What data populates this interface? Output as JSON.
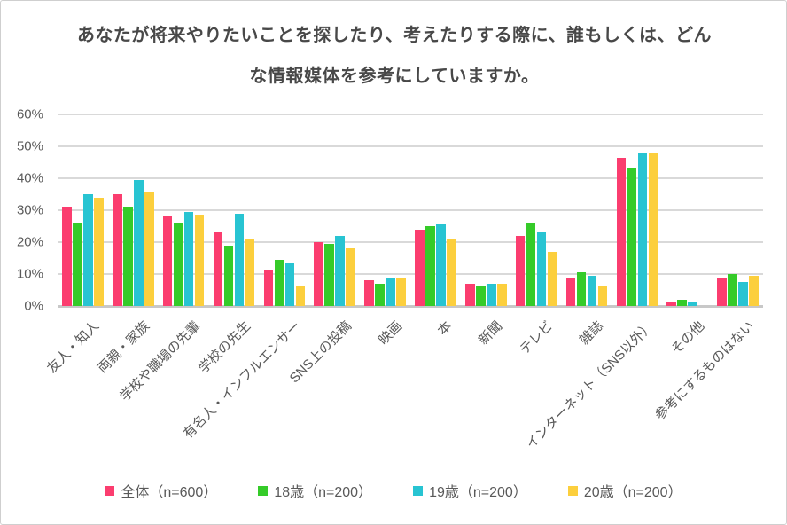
{
  "title": "あなたが将来やりたいことを探したり、考えたりする際に、誰もしくは、どんな情報媒体を参考にしていますか。",
  "chart_data": {
    "type": "bar",
    "title": "あなたが将来やりたいことを探したり、考えたりする際に、誰もしくは、どんな情報媒体を参考にしていますか。",
    "categories": [
      "友人・知人",
      "両親・家族",
      "学校や職場の先輩",
      "学校の先生",
      "有名人・インフルエンサー",
      "SNS上の投稿",
      "映画",
      "本",
      "新聞",
      "テレビ",
      "雑誌",
      "インターネット（SNS以外）",
      "その他",
      "参考にするものはない"
    ],
    "series": [
      {
        "name": "全体（n=600）",
        "color": "#FB3D6F",
        "values": [
          31,
          35,
          28,
          23,
          11.5,
          20,
          8,
          24,
          7,
          22,
          9,
          46.5,
          1.2,
          9
        ]
      },
      {
        "name": "18歳（n=200）",
        "color": "#35CB29",
        "values": [
          26,
          31,
          26,
          19,
          14.5,
          19.5,
          7,
          25,
          6.5,
          26,
          10.5,
          43,
          2,
          10
        ]
      },
      {
        "name": "19歳（n=200）",
        "color": "#28C4D2",
        "values": [
          35,
          39.5,
          29.5,
          29,
          13.5,
          22,
          8.5,
          25.5,
          7,
          23,
          9.5,
          48,
          1,
          7.5
        ]
      },
      {
        "name": "20歳（n=200）",
        "color": "#FCCF3D",
        "values": [
          34,
          35.5,
          28.5,
          21,
          6.5,
          18,
          8.5,
          21,
          7,
          17,
          6.5,
          48,
          0,
          9.5
        ]
      }
    ],
    "y_ticks": [
      "0%",
      "10%",
      "20%",
      "30%",
      "40%",
      "50%",
      "60%"
    ],
    "ylim": [
      0,
      60
    ],
    "xlabel": "",
    "ylabel": "",
    "grid": true,
    "legend_position": "bottom"
  },
  "colors": {
    "gridline": "#d9d9d9",
    "axis_line": "#c8c8c8",
    "text": "#595959",
    "title_text": "#484848"
  }
}
